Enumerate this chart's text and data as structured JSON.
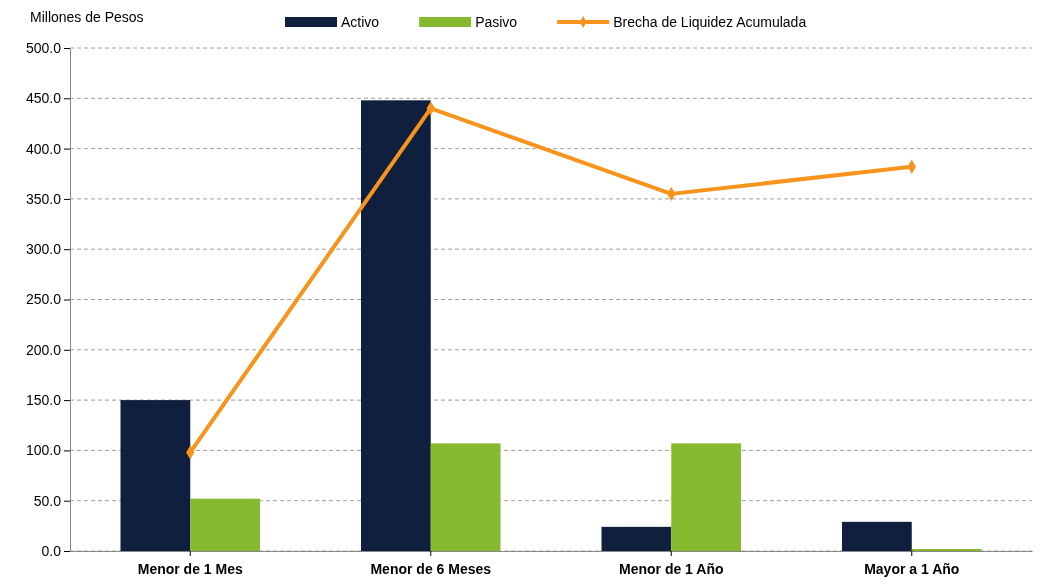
{
  "chart_data": {
    "type": "bar",
    "ylabel": "Millones de Pesos",
    "categories": [
      "Menor de 1 Mes",
      "Menor de 6 Meses",
      "Menor de 1 Año",
      "Mayor a 1 Año"
    ],
    "series": [
      {
        "name": "Activo",
        "color": "#0f1f3d",
        "values": [
          150,
          448,
          24,
          29
        ]
      },
      {
        "name": "Pasivo",
        "color": "#86b92f",
        "values": [
          52,
          107,
          107,
          2
        ]
      },
      {
        "name": "Brecha de Liquidez Acumulada",
        "type": "line",
        "color": "#f7941d",
        "values": [
          98,
          440,
          355,
          382
        ]
      }
    ],
    "ylim": [
      0,
      500
    ],
    "yticks": [
      {
        "value": 0,
        "label": "0.0"
      },
      {
        "value": 50,
        "label": "50.0"
      },
      {
        "value": 100,
        "label": "100.0"
      },
      {
        "value": 150,
        "label": "150.0"
      },
      {
        "value": 200,
        "label": "200.0"
      },
      {
        "value": 250,
        "label": "250.0"
      },
      {
        "value": 300,
        "label": "300.0"
      },
      {
        "value": 350,
        "label": "350.0"
      },
      {
        "value": 400,
        "label": "400.0"
      },
      {
        "value": 450,
        "label": "450.0"
      },
      {
        "value": 500,
        "label": "500.0"
      }
    ],
    "grid": "y",
    "legend": "top",
    "marker": "diamond"
  }
}
